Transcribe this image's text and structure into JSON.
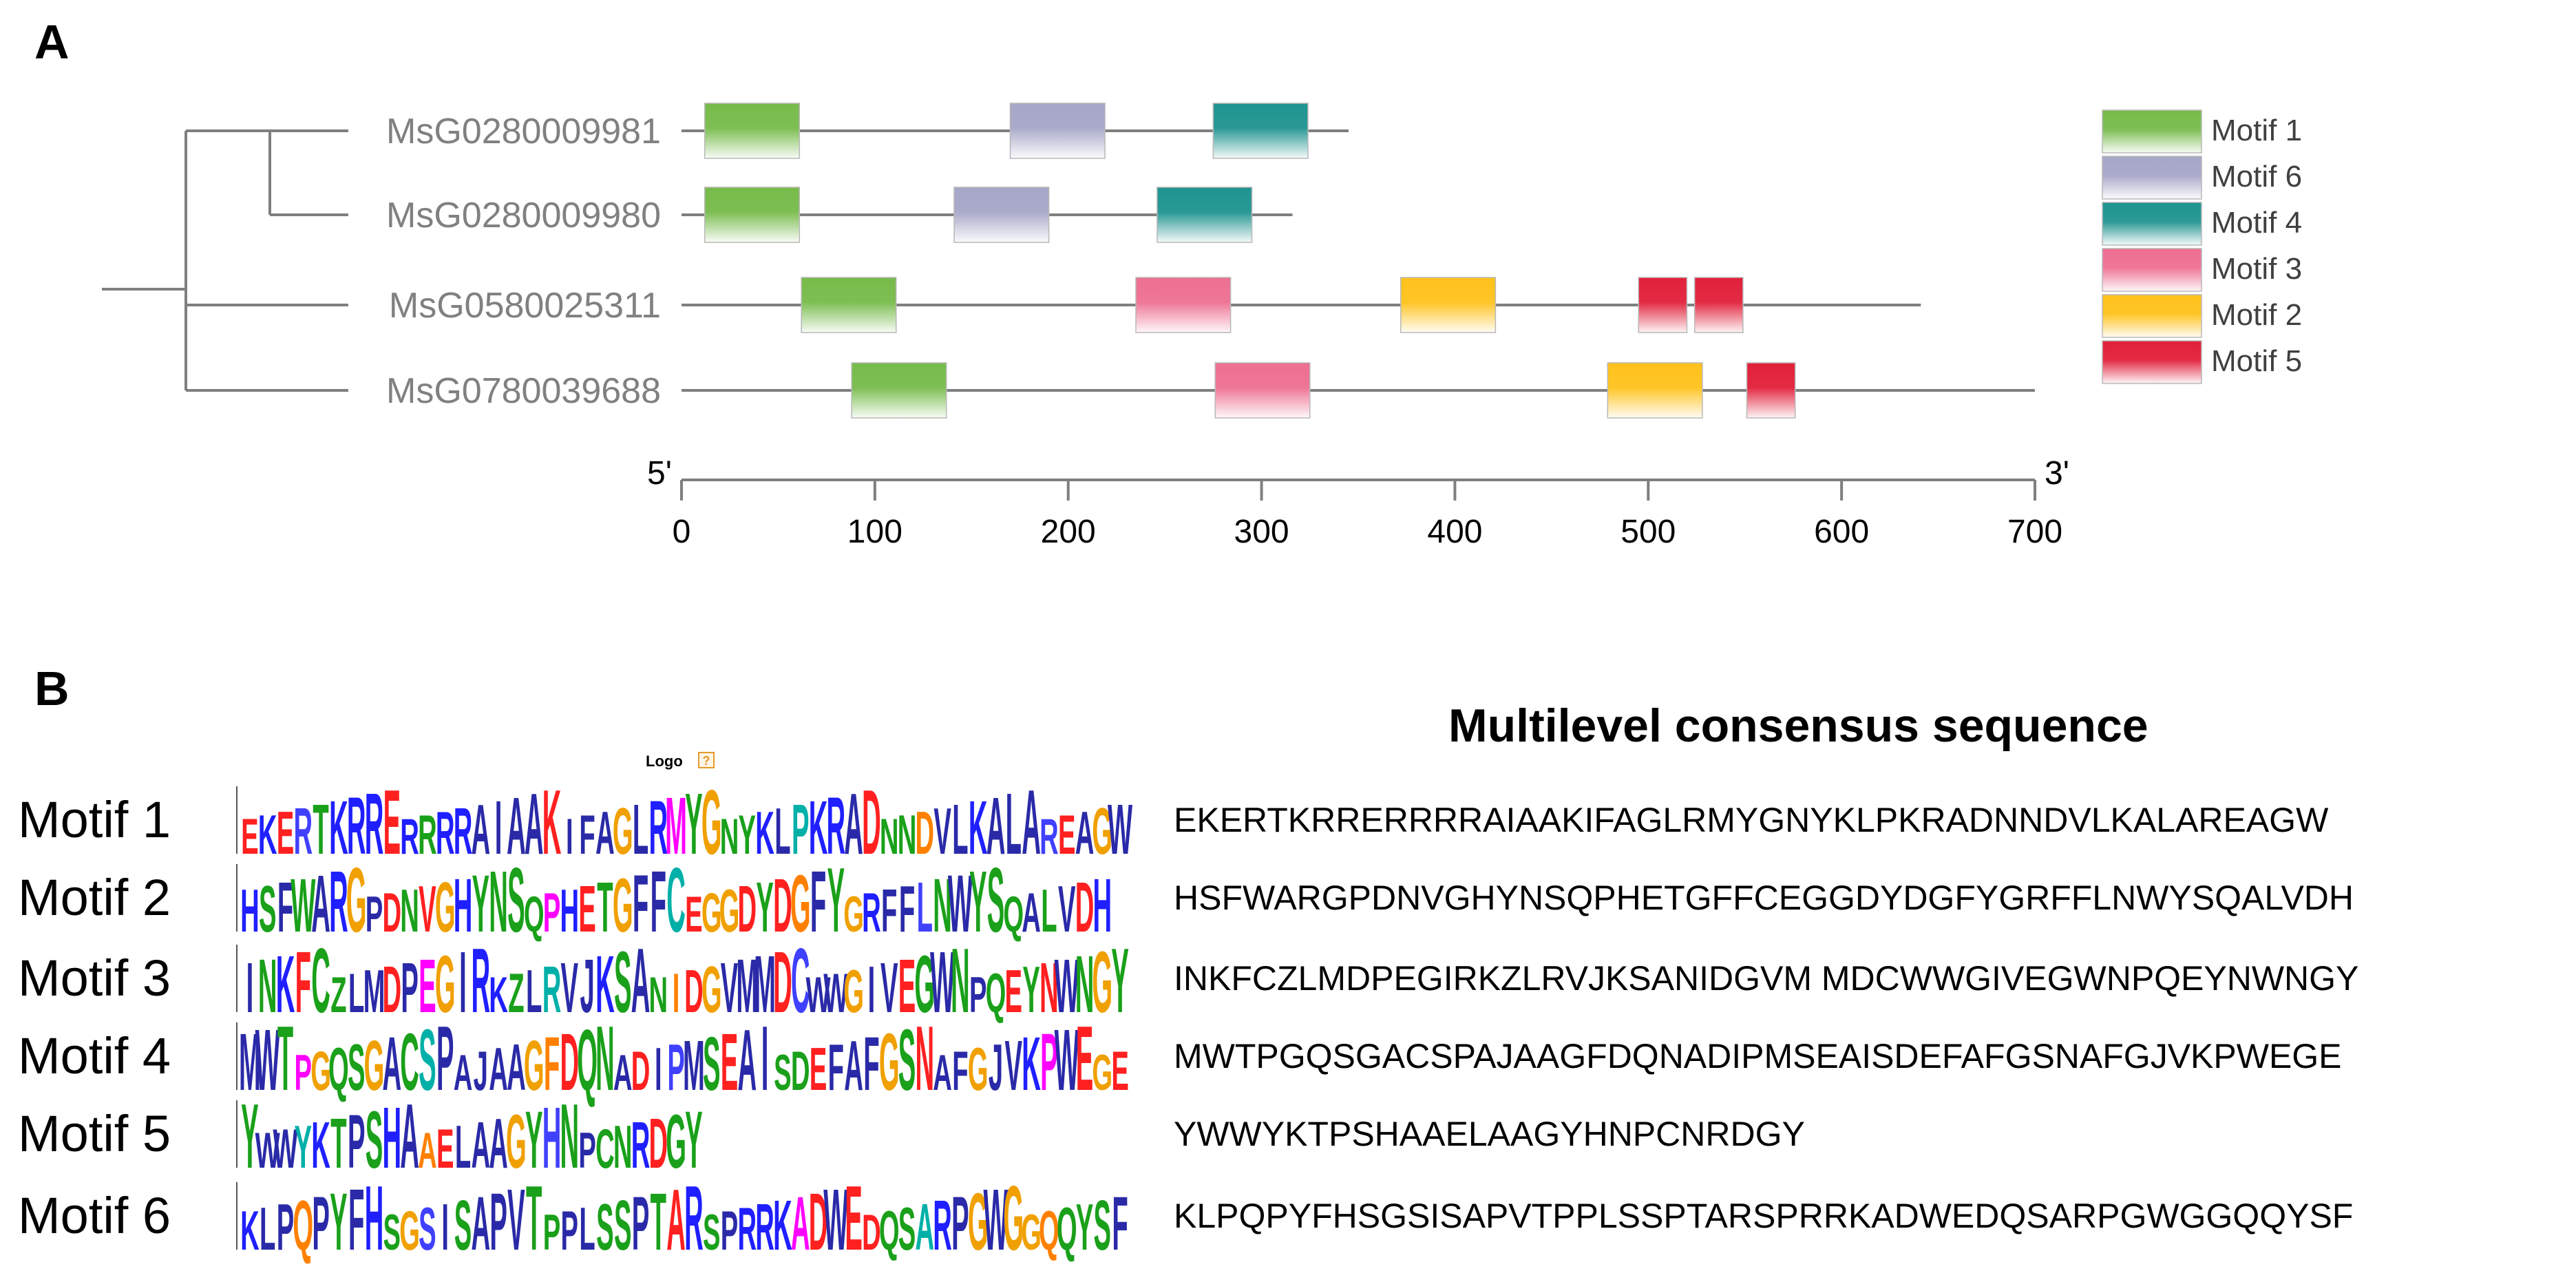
{
  "panel_a": {
    "letter": "A",
    "genes": [
      {
        "name": "MsG0280009981",
        "length": 345,
        "motifs": [
          {
            "motif": "Motif 1",
            "start": 12,
            "end": 61
          },
          {
            "motif": "Motif 6",
            "start": 170,
            "end": 219
          },
          {
            "motif": "Motif 4",
            "start": 275,
            "end": 324
          }
        ]
      },
      {
        "name": "MsG0280009980",
        "length": 316,
        "motifs": [
          {
            "motif": "Motif 1",
            "start": 12,
            "end": 61
          },
          {
            "motif": "Motif 6",
            "start": 141,
            "end": 190
          },
          {
            "motif": "Motif 4",
            "start": 246,
            "end": 295
          }
        ]
      },
      {
        "name": "MsG0580025311",
        "length": 641,
        "motifs": [
          {
            "motif": "Motif 1",
            "start": 62,
            "end": 111
          },
          {
            "motif": "Motif 3",
            "start": 235,
            "end": 284
          },
          {
            "motif": "Motif 2",
            "start": 372,
            "end": 421
          },
          {
            "motif": "Motif 5",
            "start": 495,
            "end": 520
          },
          {
            "motif": "Motif 5",
            "start": 524,
            "end": 549
          }
        ]
      },
      {
        "name": "MsG0780039688",
        "length": 700,
        "motifs": [
          {
            "motif": "Motif 1",
            "start": 88,
            "end": 137
          },
          {
            "motif": "Motif 3",
            "start": 276,
            "end": 325
          },
          {
            "motif": "Motif 2",
            "start": 479,
            "end": 528
          },
          {
            "motif": "Motif 5",
            "start": 551,
            "end": 576
          }
        ]
      }
    ],
    "legend": [
      {
        "label": "Motif 1",
        "color": "#77bb4a"
      },
      {
        "label": "Motif 6",
        "color": "#a6a6c8"
      },
      {
        "label": "Motif 4",
        "color": "#1f9490"
      },
      {
        "label": "Motif 3",
        "color": "#ee6f91"
      },
      {
        "label": "Motif 2",
        "color": "#ffc21c"
      },
      {
        "label": "Motif 5",
        "color": "#e2203a"
      }
    ],
    "axis": {
      "left_end": "5'",
      "right_end": "3'",
      "min": 0,
      "max": 700,
      "ticks": [
        "0",
        "100",
        "200",
        "300",
        "400",
        "500",
        "600",
        "700"
      ]
    }
  },
  "panel_b": {
    "letter": "B",
    "heading": "Multilevel consensus sequence",
    "logo_tag": "Logo",
    "logo_tag_icon": "question-icon",
    "motifs": [
      {
        "label": "Motif 1",
        "sequence": "EKERTKRRERRRRAIAAKIFAGLRMYGNYKLPKRADNNDVLKALAREAGW"
      },
      {
        "label": "Motif 2",
        "sequence": "HSFWARGPDNVGHYNSQPHETGFFCEGGDYDGFYGRFFLNWYSQALVDH"
      },
      {
        "label": "Motif 3",
        "sequence": "INKFCZLMDPEGIRKZLRVJKSANIDGVM MDCWWGIVEGWNPQEYNWNGY"
      },
      {
        "label": "Motif 4",
        "sequence": "MWTPGQSGACSPAJAAGFDQNADIPMSEAISDEFAFGSNAFGJVKPWEGE"
      },
      {
        "label": "Motif 5",
        "sequence": "YWWYKTPSHAAELAAGYHNPCNRDGY"
      },
      {
        "label": "Motif 6",
        "sequence": "KLPQPYFHSGSISAPVTPPLSSPTARSPRRKADWEDQSARPGWGGQQYSF"
      }
    ],
    "logos": [
      {
        "label": "Motif 1",
        "letters": "EKERTKRRERRRRAIAAKIFAGLRMYGNYKLPKRADNNDVLKALAREAGW"
      },
      {
        "label": "Motif 2",
        "letters": "HSFWARGPDNVGHYNSQPHETGFFCEGGDYDGFYGRFFLNWYSQALVDH"
      },
      {
        "label": "Motif 3",
        "letters": "INKFCZLMDPEGIRKZLRVJKSANIDGVMMDCWWGIVEGWNPQEYNWNGY"
      },
      {
        "label": "Motif 4",
        "letters": "MWTPGQSGACSPAJAAGFDQNADIPMSEAISDEFAFGSNAFGJVKPWEGE"
      },
      {
        "label": "Motif 5",
        "letters": "YWWYKTPSHAAELAAGYHNPCNRDGY"
      },
      {
        "label": "Motif 6",
        "letters": "KLPQPYFHSGSISAPVTPPLSSPTARSPRRKADWEDQSARPGWGGQQYSF"
      }
    ]
  }
}
